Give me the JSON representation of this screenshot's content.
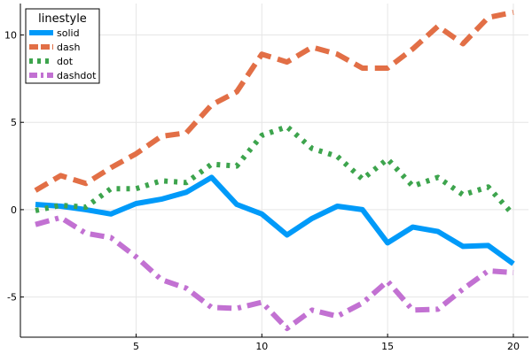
{
  "chart_data": {
    "type": "line",
    "x": [
      1,
      2,
      3,
      4,
      5,
      6,
      7,
      8,
      9,
      10,
      11,
      12,
      13,
      14,
      15,
      16,
      17,
      18,
      19,
      20
    ],
    "xlim": [
      0.4,
      20.6
    ],
    "ylim": [
      -7.3,
      11.8
    ],
    "xticks": [
      5,
      10,
      15,
      20
    ],
    "yticks": [
      -5,
      0,
      5,
      10
    ],
    "xtick_labels": [
      "5",
      "10",
      "15",
      "20"
    ],
    "ytick_labels": [
      "-5",
      "0",
      "5",
      "10"
    ],
    "grid": true,
    "legend": {
      "title": "linestyle",
      "position": "top-left"
    },
    "series": [
      {
        "name": "solid",
        "style": "solid",
        "color": "#009af9",
        "values": [
          0.3,
          0.2,
          0.0,
          -0.25,
          0.35,
          0.6,
          1.0,
          1.85,
          0.3,
          -0.25,
          -1.45,
          -0.5,
          0.2,
          0.0,
          -1.9,
          -1.0,
          -1.25,
          -2.1,
          -2.05,
          -3.1
        ]
      },
      {
        "name": "dash",
        "style": "dash",
        "color": "#e26f46",
        "values": [
          1.1,
          1.95,
          1.5,
          2.4,
          3.2,
          4.2,
          4.4,
          6.0,
          6.75,
          8.9,
          8.45,
          9.3,
          8.9,
          8.1,
          8.1,
          9.2,
          10.5,
          9.5,
          11.0,
          11.3
        ]
      },
      {
        "name": "dot",
        "style": "dot",
        "color": "#3da44d",
        "values": [
          -0.05,
          0.25,
          0.15,
          1.2,
          1.2,
          1.65,
          1.55,
          2.6,
          2.5,
          4.25,
          4.75,
          3.5,
          3.05,
          1.75,
          2.9,
          1.35,
          1.85,
          0.85,
          1.3,
          -0.3
        ]
      },
      {
        "name": "dashdot",
        "style": "dashdot",
        "color": "#c271d2",
        "values": [
          -0.85,
          -0.45,
          -1.35,
          -1.6,
          -2.7,
          -4.0,
          -4.5,
          -5.6,
          -5.65,
          -5.3,
          -6.8,
          -5.75,
          -6.1,
          -5.35,
          -4.1,
          -5.75,
          -5.7,
          -4.55,
          -3.5,
          -3.6
        ]
      }
    ]
  }
}
